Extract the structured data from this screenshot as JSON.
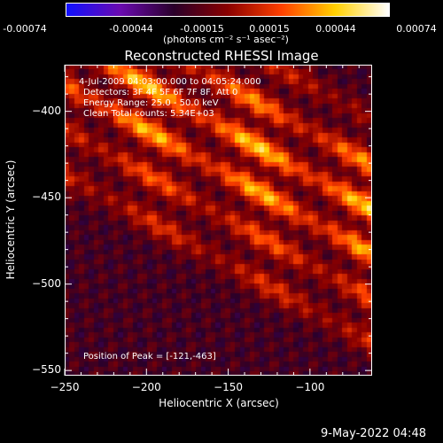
{
  "colorbar": {
    "ticks": [
      "-0.00074",
      "-0.00044",
      "-0.00015",
      "0.00015",
      "0.00044",
      "0.00074"
    ],
    "units": "(photons cm⁻² s⁻¹ asec⁻²)",
    "colors": [
      "#1010ff",
      "#6a0ab0",
      "#2a002a",
      "#8a0000",
      "#ff4000",
      "#ffd000",
      "#ffffff"
    ]
  },
  "chart_data": {
    "type": "heatmap",
    "title": "Reconstructed RHESSI Image",
    "xlabel": "Heliocentric X (arcsec)",
    "ylabel": "Heliocentric Y (arcsec)",
    "xlim": [
      -250,
      -62
    ],
    "ylim": [
      -553,
      -373
    ],
    "x_ticks": [
      -250,
      -200,
      -150,
      -100
    ],
    "y_ticks": [
      -400,
      -450,
      -500,
      -550
    ],
    "x_tick_labels": [
      "−250",
      "−200",
      "−150",
      "−100"
    ],
    "y_tick_labels": [
      "−400",
      "−450",
      "−500",
      "−550"
    ],
    "value_range": [
      -0.00074,
      0.00074
    ],
    "peak": {
      "x": -121,
      "y": -463
    },
    "bands": [
      {
        "offset": -130,
        "amp": 0.0003
      },
      {
        "offset": -78,
        "amp": 0.00055
      },
      {
        "offset": -28,
        "amp": 0.0007
      },
      {
        "offset": 22,
        "amp": 0.00065
      },
      {
        "offset": 72,
        "amp": 0.00045
      },
      {
        "offset": 122,
        "amp": 0.00035
      }
    ]
  },
  "annotations": {
    "time_range": "4-Jul-2009 04:03:00.000 to 04:05:24.000",
    "detectors": "Detectors: 3F 4F 5F 6F 7F 8F, Att 0",
    "energy": "Energy Range: 25.0 - 50.0 keV",
    "clean": "Clean     Total counts: 5.34E+03",
    "peak_position": "Position of Peak = [-121,-463]"
  },
  "footer": {
    "date": "9-May-2022 04:48"
  }
}
